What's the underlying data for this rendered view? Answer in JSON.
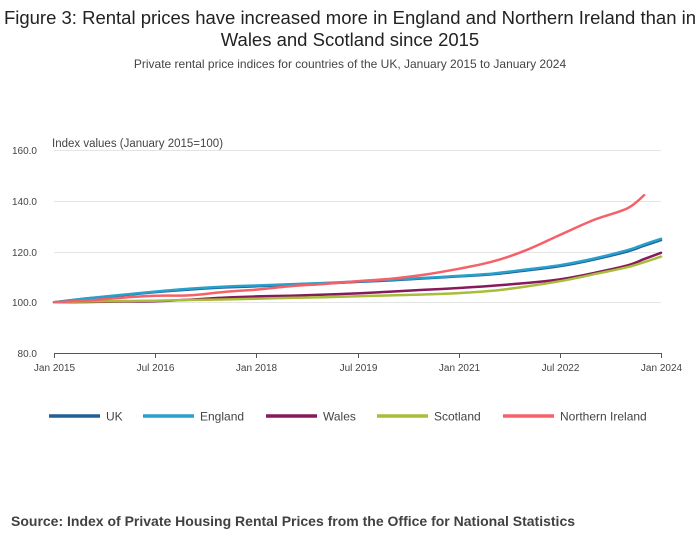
{
  "chart_data": {
    "type": "line",
    "title": "Figure 3: Rental prices have increased more in England and Northern Ireland than in Wales and Scotland since 2015",
    "subtitle": "Private rental price indices for countries of the UK, January 2015 to January 2024",
    "ylabel": "Index values (January 2015=100)",
    "xlabel": "",
    "ylim": [
      80,
      160
    ],
    "yticks": [
      "80.0",
      "100.0",
      "120.0",
      "140.0",
      "160.0"
    ],
    "xlim": [
      0,
      108
    ],
    "xticks": [
      {
        "label": "Jan 2015",
        "month": 0
      },
      {
        "label": "Jul 2016",
        "month": 18
      },
      {
        "label": "Jan 2018",
        "month": 36
      },
      {
        "label": "Jul 2019",
        "month": 54
      },
      {
        "label": "Jan 2021",
        "month": 72
      },
      {
        "label": "Jul 2022",
        "month": 90
      },
      {
        "label": "Jan 2024",
        "month": 108
      }
    ],
    "x": [
      0,
      6,
      12,
      18,
      24,
      30,
      36,
      42,
      48,
      54,
      60,
      66,
      72,
      78,
      84,
      90,
      96,
      102,
      105,
      108
    ],
    "series": [
      {
        "name": "UK",
        "color": "#206095",
        "values": [
          100.0,
          101.5,
          102.7,
          104.0,
          105.0,
          105.8,
          106.3,
          106.8,
          107.4,
          108.0,
          108.6,
          109.4,
          110.2,
          111.0,
          112.5,
          114.2,
          116.8,
          120.0,
          122.3,
          124.5
        ]
      },
      {
        "name": "England",
        "color": "#27a0cc",
        "values": [
          100.0,
          101.6,
          102.9,
          104.2,
          105.3,
          106.1,
          106.6,
          107.1,
          107.6,
          108.2,
          108.9,
          109.6,
          110.4,
          111.3,
          112.9,
          114.6,
          117.2,
          120.5,
          122.8,
          125.0
        ]
      },
      {
        "name": "Wales",
        "color": "#871a5b",
        "values": [
          100.0,
          100.1,
          100.3,
          100.4,
          101.0,
          101.8,
          102.3,
          102.6,
          103.0,
          103.5,
          104.2,
          104.9,
          105.6,
          106.5,
          107.6,
          109.0,
          111.5,
          114.5,
          117.0,
          119.5
        ]
      },
      {
        "name": "Scotland",
        "color": "#a8bd3a",
        "values": [
          100.0,
          100.3,
          100.5,
          100.6,
          100.9,
          101.1,
          101.4,
          101.7,
          102.0,
          102.4,
          102.7,
          103.1,
          103.6,
          104.5,
          106.2,
          108.3,
          111.0,
          113.8,
          115.8,
          118.0
        ]
      },
      {
        "name": "Northern Ireland",
        "color": "#f66068",
        "values": [
          100.0,
          100.7,
          101.8,
          102.6,
          102.7,
          104.0,
          105.0,
          106.3,
          107.2,
          108.3,
          109.3,
          110.9,
          113.2,
          116.0,
          120.5,
          126.5,
          132.4,
          137.0,
          142.2,
          null
        ]
      }
    ]
  },
  "source": "Source: Index of Private Housing Rental Prices from the Office for National Statistics"
}
